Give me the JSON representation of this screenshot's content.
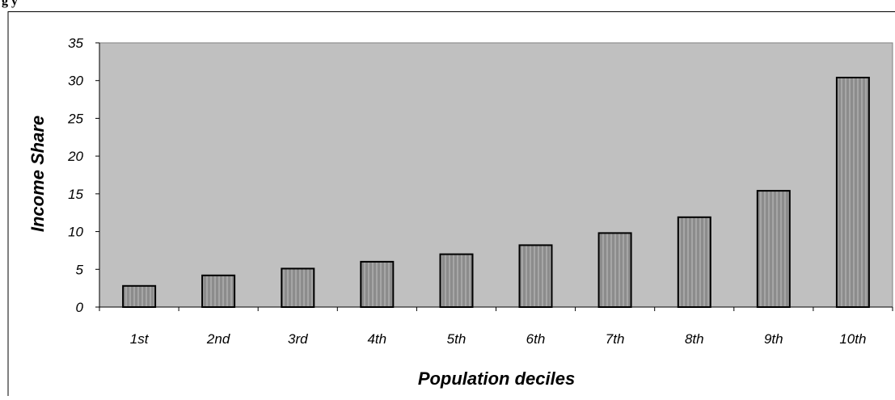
{
  "caption_fragment": "g                                                         y",
  "chart_data": {
    "type": "bar",
    "title": "",
    "xlabel": "Population deciles",
    "ylabel": "Income Share",
    "categories": [
      "1st",
      "2nd",
      "3rd",
      "4th",
      "5th",
      "6th",
      "7th",
      "8th",
      "9th",
      "10th"
    ],
    "values": [
      2.8,
      4.2,
      5.1,
      6.0,
      7.0,
      8.2,
      9.8,
      11.9,
      15.4,
      30.4
    ],
    "ylim": [
      0,
      35
    ],
    "yticks": [
      0,
      5,
      10,
      15,
      20,
      25,
      30,
      35
    ],
    "grid": false,
    "legend": "none",
    "colors": {
      "plot_bg": "#c0c0c0",
      "bar_fill": "#8c8c8c",
      "bar_stripe": "#a6a6a6",
      "outline": "#000000"
    }
  }
}
